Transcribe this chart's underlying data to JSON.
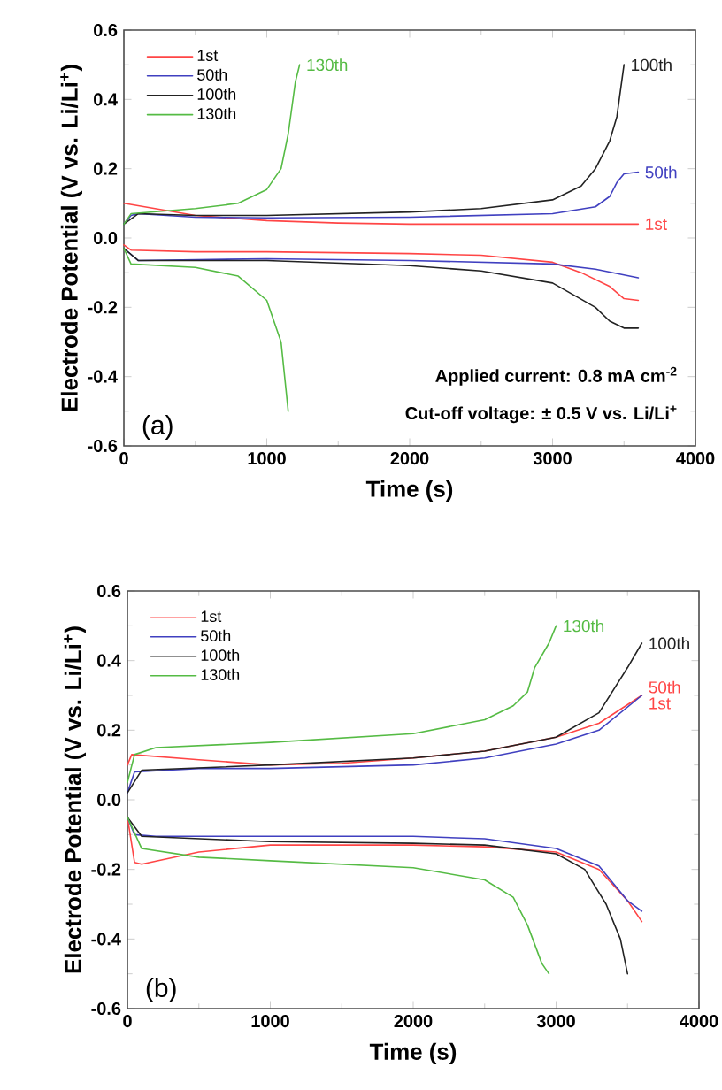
{
  "chart_data": [
    {
      "type": "line",
      "xlabel": "Time (s)",
      "ylabel": "Electrode Potential (V vs. Li/Li$^{+}$)",
      "xlim": [
        0,
        4000
      ],
      "ylim": [
        -0.6,
        0.6
      ],
      "xticks": [
        0,
        1000,
        2000,
        3000,
        4000
      ],
      "yticks": [
        -0.6,
        -0.4,
        -0.2,
        {
          "value": 0,
          "label": "0.0"
        },
        0.2,
        0.4,
        0.6
      ],
      "legend": "top left",
      "grid": false,
      "line_style": "solid",
      "marker": "none",
      "series": [
        {
          "name": "1st",
          "color": "#ff4545",
          "x": [
            0,
            500,
            1000,
            1500,
            2000,
            3600,
            null,
            0,
            50,
            500,
            1000,
            2000,
            2500,
            3000,
            3200,
            3400,
            3500,
            3600
          ],
          "values": [
            0.1,
            0.065,
            0.05,
            0.043,
            0.04,
            0.04,
            null,
            -0.02,
            -0.035,
            -0.04,
            -0.04,
            -0.045,
            -0.05,
            -0.07,
            -0.1,
            -0.14,
            -0.175,
            -0.18
          ]
        },
        {
          "name": "50th",
          "color": "#4040c0",
          "x": [
            0,
            50,
            100,
            500,
            1000,
            2000,
            3000,
            3300,
            3400,
            3450,
            3500,
            3600,
            null,
            0,
            100,
            1000,
            2000,
            3000,
            3300,
            3600
          ],
          "values": [
            0.04,
            0.065,
            0.07,
            0.06,
            0.058,
            0.06,
            0.07,
            0.09,
            0.12,
            0.16,
            0.185,
            0.19,
            null,
            -0.03,
            -0.065,
            -0.06,
            -0.065,
            -0.075,
            -0.09,
            -0.115
          ]
        },
        {
          "name": "100th",
          "color": "#222222",
          "x": [
            0,
            100,
            500,
            1000,
            2000,
            2500,
            3000,
            3200,
            3300,
            3400,
            3450,
            3500,
            null,
            0,
            100,
            1000,
            2000,
            2500,
            3000,
            3300,
            3400,
            3500,
            3600
          ],
          "values": [
            0.04,
            0.07,
            0.065,
            0.065,
            0.075,
            0.085,
            0.11,
            0.15,
            0.2,
            0.28,
            0.35,
            0.5,
            null,
            -0.03,
            -0.065,
            -0.065,
            -0.08,
            -0.095,
            -0.13,
            -0.2,
            -0.24,
            -0.26,
            -0.26
          ]
        },
        {
          "name": "130th",
          "color": "#55bb44",
          "x": [
            0,
            50,
            500,
            800,
            1000,
            1100,
            1150,
            1200,
            1230,
            null,
            0,
            50,
            500,
            800,
            1000,
            1100,
            1150
          ],
          "values": [
            0.04,
            0.07,
            0.085,
            0.1,
            0.14,
            0.2,
            0.3,
            0.45,
            0.5,
            null,
            -0.03,
            -0.075,
            -0.085,
            -0.11,
            -0.18,
            -0.3,
            -0.5
          ]
        }
      ],
      "annotations": [
        "(a)",
        "Applied current: 0.8 mA cm$^{-2}$",
        "Cut-off voltage: ± 0.5 V vs. Li/Li$^{+}$",
        {
          "text": "130th",
          "x": 1230,
          "y": 0.5
        },
        {
          "text": "100th",
          "x": 3500,
          "y": 0.5
        },
        {
          "text": "50th",
          "x": 3600,
          "y": 0.19
        },
        {
          "text": "1st",
          "x": 3600,
          "y": 0.04
        }
      ]
    },
    {
      "type": "line",
      "xlabel": "Time (s)",
      "ylabel": "Electrode Potential (V vs. Li/Li$^{+}$)",
      "xlim": [
        0,
        4000
      ],
      "ylim": [
        -0.6,
        0.6
      ],
      "xticks": [
        0,
        1000,
        2000,
        3000,
        4000
      ],
      "yticks": [
        -0.6,
        -0.4,
        -0.2,
        {
          "value": 0,
          "label": "0.0"
        },
        0.2,
        0.4,
        0.6
      ],
      "legend": "top left",
      "grid": false,
      "line_style": "solid",
      "marker": "none",
      "series": [
        {
          "name": "1st",
          "color": "#ff4545",
          "x": [
            0,
            30,
            500,
            1000,
            1500,
            2000,
            2500,
            3000,
            3300,
            3600,
            null,
            0,
            50,
            100,
            500,
            1000,
            2000,
            2500,
            3000,
            3300,
            3500,
            3600
          ],
          "values": [
            0.1,
            0.13,
            0.115,
            0.1,
            0.105,
            0.12,
            0.14,
            0.18,
            0.22,
            0.3,
            null,
            -0.05,
            -0.18,
            -0.185,
            -0.15,
            -0.13,
            -0.13,
            -0.135,
            -0.15,
            -0.2,
            -0.29,
            -0.35
          ]
        },
        {
          "name": "50th",
          "color": "#4040c0",
          "x": [
            0,
            50,
            500,
            1000,
            2000,
            2500,
            3000,
            3300,
            3600,
            null,
            0,
            50,
            200,
            2000,
            2500,
            3000,
            3300,
            3500,
            3600
          ],
          "values": [
            0.02,
            0.08,
            0.09,
            0.09,
            0.1,
            0.12,
            0.16,
            0.2,
            0.3,
            null,
            -0.05,
            -0.1,
            -0.105,
            -0.105,
            -0.112,
            -0.14,
            -0.19,
            -0.29,
            -0.32
          ]
        },
        {
          "name": "100th",
          "color": "#222222",
          "x": [
            0,
            100,
            1000,
            2000,
            2500,
            3000,
            3300,
            3500,
            3600,
            null,
            0,
            100,
            1000,
            2000,
            2500,
            3000,
            3200,
            3350,
            3450,
            3500
          ],
          "values": [
            0.02,
            0.085,
            0.1,
            0.12,
            0.14,
            0.18,
            0.25,
            0.38,
            0.45,
            null,
            -0.05,
            -0.105,
            -0.12,
            -0.125,
            -0.13,
            -0.155,
            -0.2,
            -0.3,
            -0.4,
            -0.5
          ]
        },
        {
          "name": "130th",
          "color": "#55bb44",
          "x": [
            0,
            50,
            200,
            1000,
            2000,
            2500,
            2700,
            2800,
            2850,
            2950,
            3000,
            null,
            0,
            100,
            500,
            1000,
            2000,
            2500,
            2700,
            2800,
            2900,
            2950
          ],
          "values": [
            0.05,
            0.13,
            0.15,
            0.165,
            0.19,
            0.23,
            0.27,
            0.31,
            0.38,
            0.45,
            0.5,
            null,
            -0.05,
            -0.14,
            -0.165,
            -0.175,
            -0.195,
            -0.23,
            -0.28,
            -0.36,
            -0.47,
            -0.5
          ]
        }
      ],
      "annotations": [
        "(b)",
        {
          "text": "130th",
          "x": 3000,
          "y": 0.5
        },
        {
          "text": "100th",
          "x": 3600,
          "y": 0.45
        },
        {
          "text": "50th",
          "x": 3600,
          "y": 0.3
        },
        {
          "text": "1st",
          "x": 3600,
          "y": 0.3
        }
      ]
    }
  ]
}
